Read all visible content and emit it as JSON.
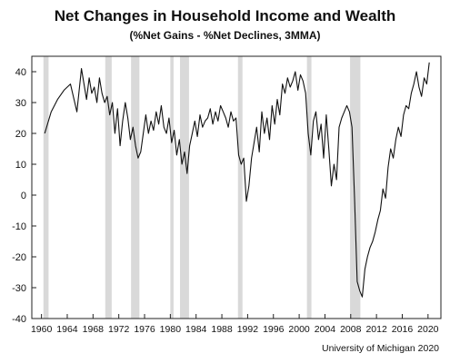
{
  "chart_data": {
    "type": "line",
    "title": "Net Changes in Household Income and Wealth",
    "subtitle": "(%Net Gains - %Net Declines, 3MMA)",
    "source": "University of Michigan 2020",
    "xlabel": "",
    "ylabel": "",
    "xlim": [
      1958.5,
      2022.0
    ],
    "ylim": [
      -40,
      45
    ],
    "grid": false,
    "x_ticks": [
      1960,
      1964,
      1968,
      1972,
      1976,
      1980,
      1984,
      1988,
      1992,
      1996,
      2000,
      2004,
      2008,
      2012,
      2016,
      2020
    ],
    "x_tick_labels": [
      "1960",
      "1964",
      "1968",
      "1972",
      "1976",
      "1980",
      "1984",
      "1988",
      "1992",
      "1996",
      "2000",
      "2004",
      "2008",
      "2012",
      "2016",
      "2020"
    ],
    "y_ticks": [
      40,
      30,
      20,
      10,
      0,
      -10,
      -20,
      -30,
      -40
    ],
    "y_tick_labels": [
      "40",
      "30",
      "20",
      "10",
      "0",
      "-10",
      "-20",
      "-30",
      "-40"
    ],
    "recessions": [
      [
        1960.3,
        1961.1
      ],
      [
        1969.9,
        1970.9
      ],
      [
        1973.9,
        1975.2
      ],
      [
        1980.0,
        1980.5
      ],
      [
        1981.5,
        1982.9
      ],
      [
        1990.5,
        1991.2
      ],
      [
        2001.2,
        2001.9
      ],
      [
        2007.9,
        2009.5
      ]
    ],
    "series": [
      {
        "x": [
          1960.5,
          1961.5,
          1962.5,
          1963.5,
          1964.5,
          1965.5,
          1966.2,
          1966.6,
          1967.0,
          1967.4,
          1967.8,
          1968.2,
          1968.6,
          1969.0,
          1969.4,
          1969.8,
          1970.2,
          1970.6,
          1971.0,
          1971.4,
          1971.8,
          1972.2,
          1972.6,
          1973.0,
          1973.4,
          1973.8,
          1974.2,
          1974.6,
          1975.0,
          1975.4,
          1975.8,
          1976.2,
          1976.6,
          1977.0,
          1977.4,
          1977.8,
          1978.2,
          1978.6,
          1979.0,
          1979.4,
          1979.8,
          1980.2,
          1980.6,
          1981.0,
          1981.4,
          1981.8,
          1982.2,
          1982.6,
          1983.0,
          1983.4,
          1983.8,
          1984.2,
          1984.6,
          1985.0,
          1985.4,
          1985.8,
          1986.2,
          1986.6,
          1987.0,
          1987.4,
          1987.8,
          1988.2,
          1988.6,
          1989.0,
          1989.4,
          1989.8,
          1990.2,
          1990.6,
          1991.0,
          1991.4,
          1991.8,
          1992.2,
          1992.6,
          1993.0,
          1993.4,
          1993.8,
          1994.2,
          1994.6,
          1995.0,
          1995.4,
          1995.8,
          1996.2,
          1996.6,
          1997.0,
          1997.4,
          1997.8,
          1998.2,
          1998.6,
          1999.0,
          1999.4,
          1999.8,
          2000.2,
          2000.6,
          2001.0,
          2001.4,
          2001.8,
          2002.2,
          2002.6,
          2003.0,
          2003.4,
          2003.8,
          2004.2,
          2004.6,
          2005.0,
          2005.4,
          2005.8,
          2006.2,
          2006.6,
          2007.0,
          2007.4,
          2007.8,
          2008.2,
          2008.6,
          2009.0,
          2009.4,
          2009.8,
          2010.2,
          2010.6,
          2011.0,
          2011.4,
          2011.8,
          2012.2,
          2012.6,
          2013.0,
          2013.4,
          2013.8,
          2014.2,
          2014.6,
          2015.0,
          2015.4,
          2015.8,
          2016.2,
          2016.6,
          2017.0,
          2017.4,
          2017.8,
          2018.2,
          2018.6,
          2019.0,
          2019.4,
          2019.8,
          2020.2
        ],
        "y": [
          20,
          27,
          31,
          34,
          36,
          27,
          41,
          36,
          31,
          38,
          33,
          35,
          30,
          38,
          33,
          30,
          32,
          26,
          30,
          20,
          28,
          16,
          24,
          30,
          25,
          18,
          22,
          16,
          12,
          14,
          20,
          26,
          20,
          24,
          21,
          27,
          23,
          29,
          22,
          20,
          25,
          17,
          21,
          13,
          18,
          10,
          14,
          7,
          16,
          20,
          24,
          19,
          26,
          22,
          24,
          25,
          28,
          23,
          27,
          24,
          29,
          27,
          25,
          22,
          27,
          24,
          25,
          13,
          10,
          12,
          -2,
          3,
          12,
          17,
          22,
          14,
          27,
          20,
          25,
          18,
          29,
          23,
          31,
          26,
          36,
          33,
          38,
          35,
          37,
          40,
          34,
          39,
          37,
          33,
          20,
          13,
          24,
          27,
          18,
          23,
          12,
          26,
          15,
          3,
          10,
          5,
          22,
          25,
          27,
          29,
          27,
          22,
          -1,
          -28,
          -31,
          -33,
          -24,
          -20,
          -17,
          -15,
          -12,
          -8,
          -5,
          2,
          -1,
          9,
          15,
          12,
          18,
          22,
          19,
          26,
          29,
          28,
          33,
          36,
          40,
          35,
          32,
          38,
          36,
          43
        ]
      }
    ]
  }
}
